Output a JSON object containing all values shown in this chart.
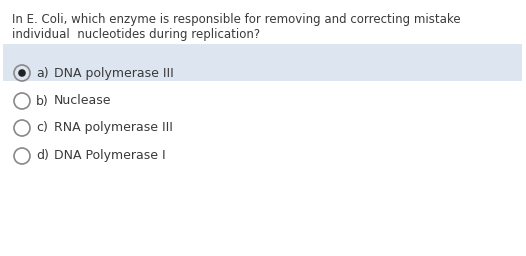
{
  "question_line1": "In E. Coli, which enzyme is responsible for removing and correcting mistake",
  "question_line2": "individual  nucleotides during replication?",
  "options": [
    {
      "label": "a)",
      "text": "DNA polymerase III",
      "selected": true
    },
    {
      "label": "b)",
      "text": "Nuclease",
      "selected": false
    },
    {
      "label": "c)",
      "text": "RNA polymerase III",
      "selected": false
    },
    {
      "label": "d)",
      "text": "DNA Polymerase I",
      "selected": false
    }
  ],
  "bg_color": "#ffffff",
  "selected_bg_color": "#dde6f0",
  "text_color": "#3a3a3a",
  "circle_edge_color": "#888888",
  "selected_dot_color": "#222222",
  "question_fontsize": 8.5,
  "option_fontsize": 9.0
}
